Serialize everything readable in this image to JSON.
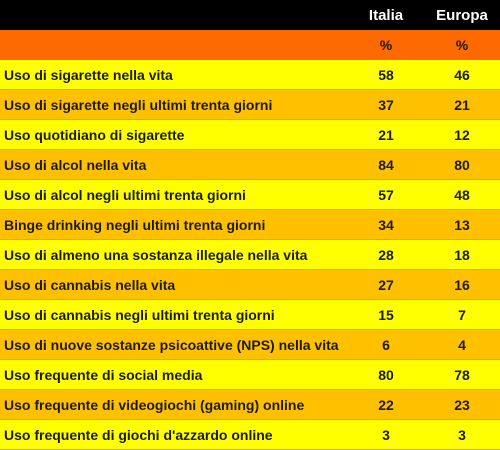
{
  "header": {
    "label_col": "",
    "col1": "Italia",
    "col2": "Europa"
  },
  "units": {
    "label_col": "",
    "col1": "%",
    "col2": "%"
  },
  "colors": {
    "header_bg": "#000000",
    "units_bg": "#ff6a00",
    "row_light": "#ffff00",
    "row_dark": "#ffc000"
  },
  "rows": [
    {
      "label": "Uso di sigarette nella vita",
      "italia": "58",
      "europa": "46"
    },
    {
      "label": "Uso di sigarette negli ultimi trenta giorni",
      "italia": "37",
      "europa": "21"
    },
    {
      "label": "Uso quotidiano di sigarette",
      "italia": "21",
      "europa": "12"
    },
    {
      "label": "Uso di alcol nella vita",
      "italia": "84",
      "europa": "80"
    },
    {
      "label": "Uso di alcol negli ultimi trenta giorni",
      "italia": "57",
      "europa": "48"
    },
    {
      "label": "Binge drinking negli ultimi trenta giorni",
      "italia": "34",
      "europa": "13"
    },
    {
      "label": "Uso di almeno una sostanza illegale nella vita",
      "italia": "28",
      "europa": "18"
    },
    {
      "label": "Uso di cannabis nella vita",
      "italia": "27",
      "europa": "16"
    },
    {
      "label": "Uso di cannabis negli ultimi trenta giorni",
      "italia": "15",
      "europa": "7"
    },
    {
      "label": "Uso di nuove sostanze psicoattive (NPS) nella vita",
      "italia": "6",
      "europa": "4"
    },
    {
      "label": "Uso frequente di social media",
      "italia": "80",
      "europa": "78"
    },
    {
      "label": "Uso frequente di videogiochi (gaming) online",
      "italia": "22",
      "europa": "23"
    },
    {
      "label": "Uso frequente di giochi d'azzardo online",
      "italia": "3",
      "europa": "3"
    }
  ]
}
